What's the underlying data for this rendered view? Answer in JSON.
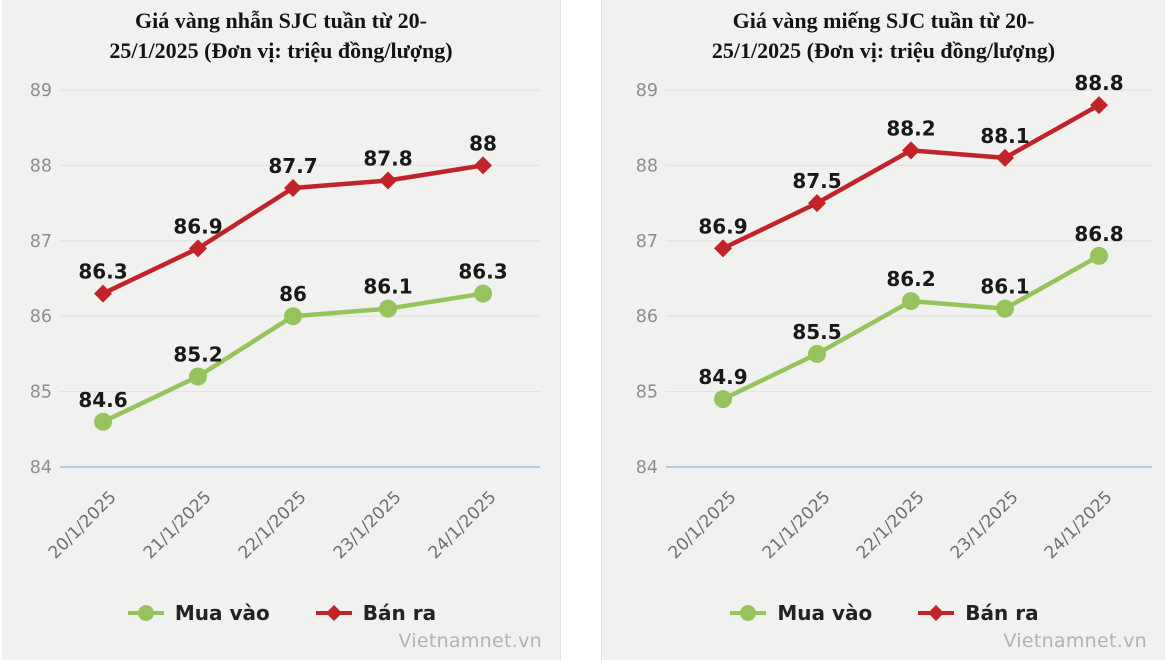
{
  "watermark": "Vietnamnet.vn",
  "chart_data": [
    {
      "type": "line",
      "title": "Giá vàng nhẫn SJC tuần từ 20-25/1/2025 (Đơn vị: triệu đồng/lượng)",
      "title_lines": [
        "Giá vàng nhẫn SJC tuần từ 20-",
        "25/1/2025 (Đơn vị: triệu đồng/lượng)"
      ],
      "unit": "triệu đồng/lượng",
      "categories": [
        "20/1/2025",
        "21/1/2025",
        "22/1/2025",
        "23/1/2025",
        "24/1/2025"
      ],
      "series": [
        {
          "name": "Mua vào",
          "marker": "circle",
          "color": "#97c35d",
          "values": [
            84.6,
            85.2,
            86,
            86.1,
            86.3
          ]
        },
        {
          "name": "Bán ra",
          "marker": "diamond",
          "color": "#c2232b",
          "values": [
            86.3,
            86.9,
            87.7,
            87.8,
            88
          ]
        }
      ],
      "ylim": [
        84,
        89
      ],
      "yticks": [
        84,
        85,
        86,
        87,
        88,
        89
      ],
      "grid": true,
      "grid_color": "#e3e3e1",
      "axis_color": "#b3c8e6",
      "legend_position": "bottom",
      "watermark": "Vietnamnet.vn"
    },
    {
      "type": "line",
      "title": "Giá vàng miếng SJC tuần từ 20-25/1/2025 (Đơn vị: triệu đồng/lượng)",
      "title_lines": [
        "Giá vàng miếng SJC tuần từ 20-",
        "25/1/2025 (Đơn vị: triệu đồng/lượng)"
      ],
      "unit": "triệu đồng/lượng",
      "categories": [
        "20/1/2025",
        "21/1/2025",
        "22/1/2025",
        "23/1/2025",
        "24/1/2025"
      ],
      "series": [
        {
          "name": "Mua vào",
          "marker": "circle",
          "color": "#97c35d",
          "values": [
            84.9,
            85.5,
            86.2,
            86.1,
            86.8
          ]
        },
        {
          "name": "Bán ra",
          "marker": "diamond",
          "color": "#c2232b",
          "values": [
            86.9,
            87.5,
            88.2,
            88.1,
            88.8
          ]
        }
      ],
      "ylim": [
        84,
        89
      ],
      "yticks": [
        84,
        85,
        86,
        87,
        88,
        89
      ],
      "grid": true,
      "grid_color": "#e3e3e1",
      "axis_color": "#b3c8e6",
      "legend_position": "bottom",
      "watermark": "Vietnamnet.vn"
    }
  ]
}
